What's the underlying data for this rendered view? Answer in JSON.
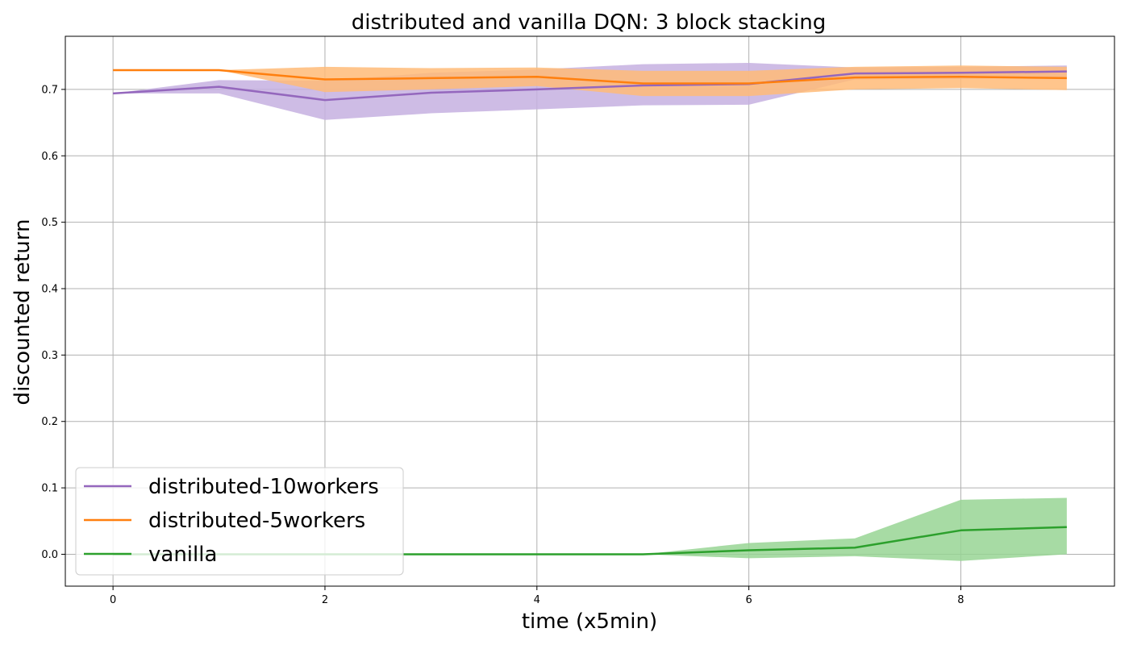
{
  "chart_data": {
    "type": "line",
    "title": "distributed and vanilla DQN: 3 block stacking",
    "xlabel": "time (x5min)",
    "ylabel": "discounted return",
    "xlim": [
      -0.45,
      9.45
    ],
    "ylim": [
      -0.048,
      0.78
    ],
    "xticks": [
      0,
      2,
      4,
      6,
      8
    ],
    "yticks": [
      0.0,
      0.1,
      0.2,
      0.3,
      0.4,
      0.5,
      0.6,
      0.7
    ],
    "ytick_labels": [
      "0.0",
      "0.1",
      "0.2",
      "0.3",
      "0.4",
      "0.5",
      "0.6",
      "0.7"
    ],
    "xtick_labels": [
      "0",
      "2",
      "4",
      "6",
      "8"
    ],
    "grid": true,
    "legend_position": "lower-left",
    "x": [
      0,
      1,
      2,
      3,
      4,
      5,
      6,
      7,
      8,
      9
    ],
    "series": [
      {
        "name": "distributed-10workers",
        "color": "#9467bd",
        "band_color": "#c5b0e0",
        "values": [
          0.694,
          0.704,
          0.684,
          0.695,
          0.7,
          0.706,
          0.708,
          0.724,
          0.725,
          0.727
        ],
        "lower": [
          0.694,
          0.694,
          0.654,
          0.664,
          0.67,
          0.676,
          0.677,
          0.715,
          0.716,
          0.718
        ],
        "upper": [
          0.694,
          0.714,
          0.713,
          0.725,
          0.73,
          0.738,
          0.74,
          0.733,
          0.734,
          0.736
        ]
      },
      {
        "name": "distributed-5workers",
        "color": "#ff7f0e",
        "band_color": "#ffbb78",
        "values": [
          0.729,
          0.729,
          0.715,
          0.717,
          0.719,
          0.709,
          0.709,
          0.718,
          0.719,
          0.717
        ],
        "lower": [
          0.729,
          0.729,
          0.696,
          0.7,
          0.705,
          0.69,
          0.69,
          0.7,
          0.702,
          0.699
        ],
        "upper": [
          0.729,
          0.729,
          0.734,
          0.732,
          0.733,
          0.728,
          0.728,
          0.734,
          0.736,
          0.734
        ]
      },
      {
        "name": "vanilla",
        "color": "#2ca02c",
        "band_color": "#98d594",
        "values": [
          0.0,
          0.0,
          0.0,
          0.0,
          0.0,
          0.0,
          0.006,
          0.01,
          0.036,
          0.041
        ],
        "lower": [
          0.0,
          0.0,
          0.0,
          0.0,
          0.0,
          0.0,
          -0.006,
          -0.003,
          -0.01,
          0.0
        ],
        "upper": [
          0.0,
          0.0,
          0.0,
          0.0,
          0.0,
          0.0,
          0.017,
          0.024,
          0.082,
          0.085
        ]
      }
    ]
  }
}
